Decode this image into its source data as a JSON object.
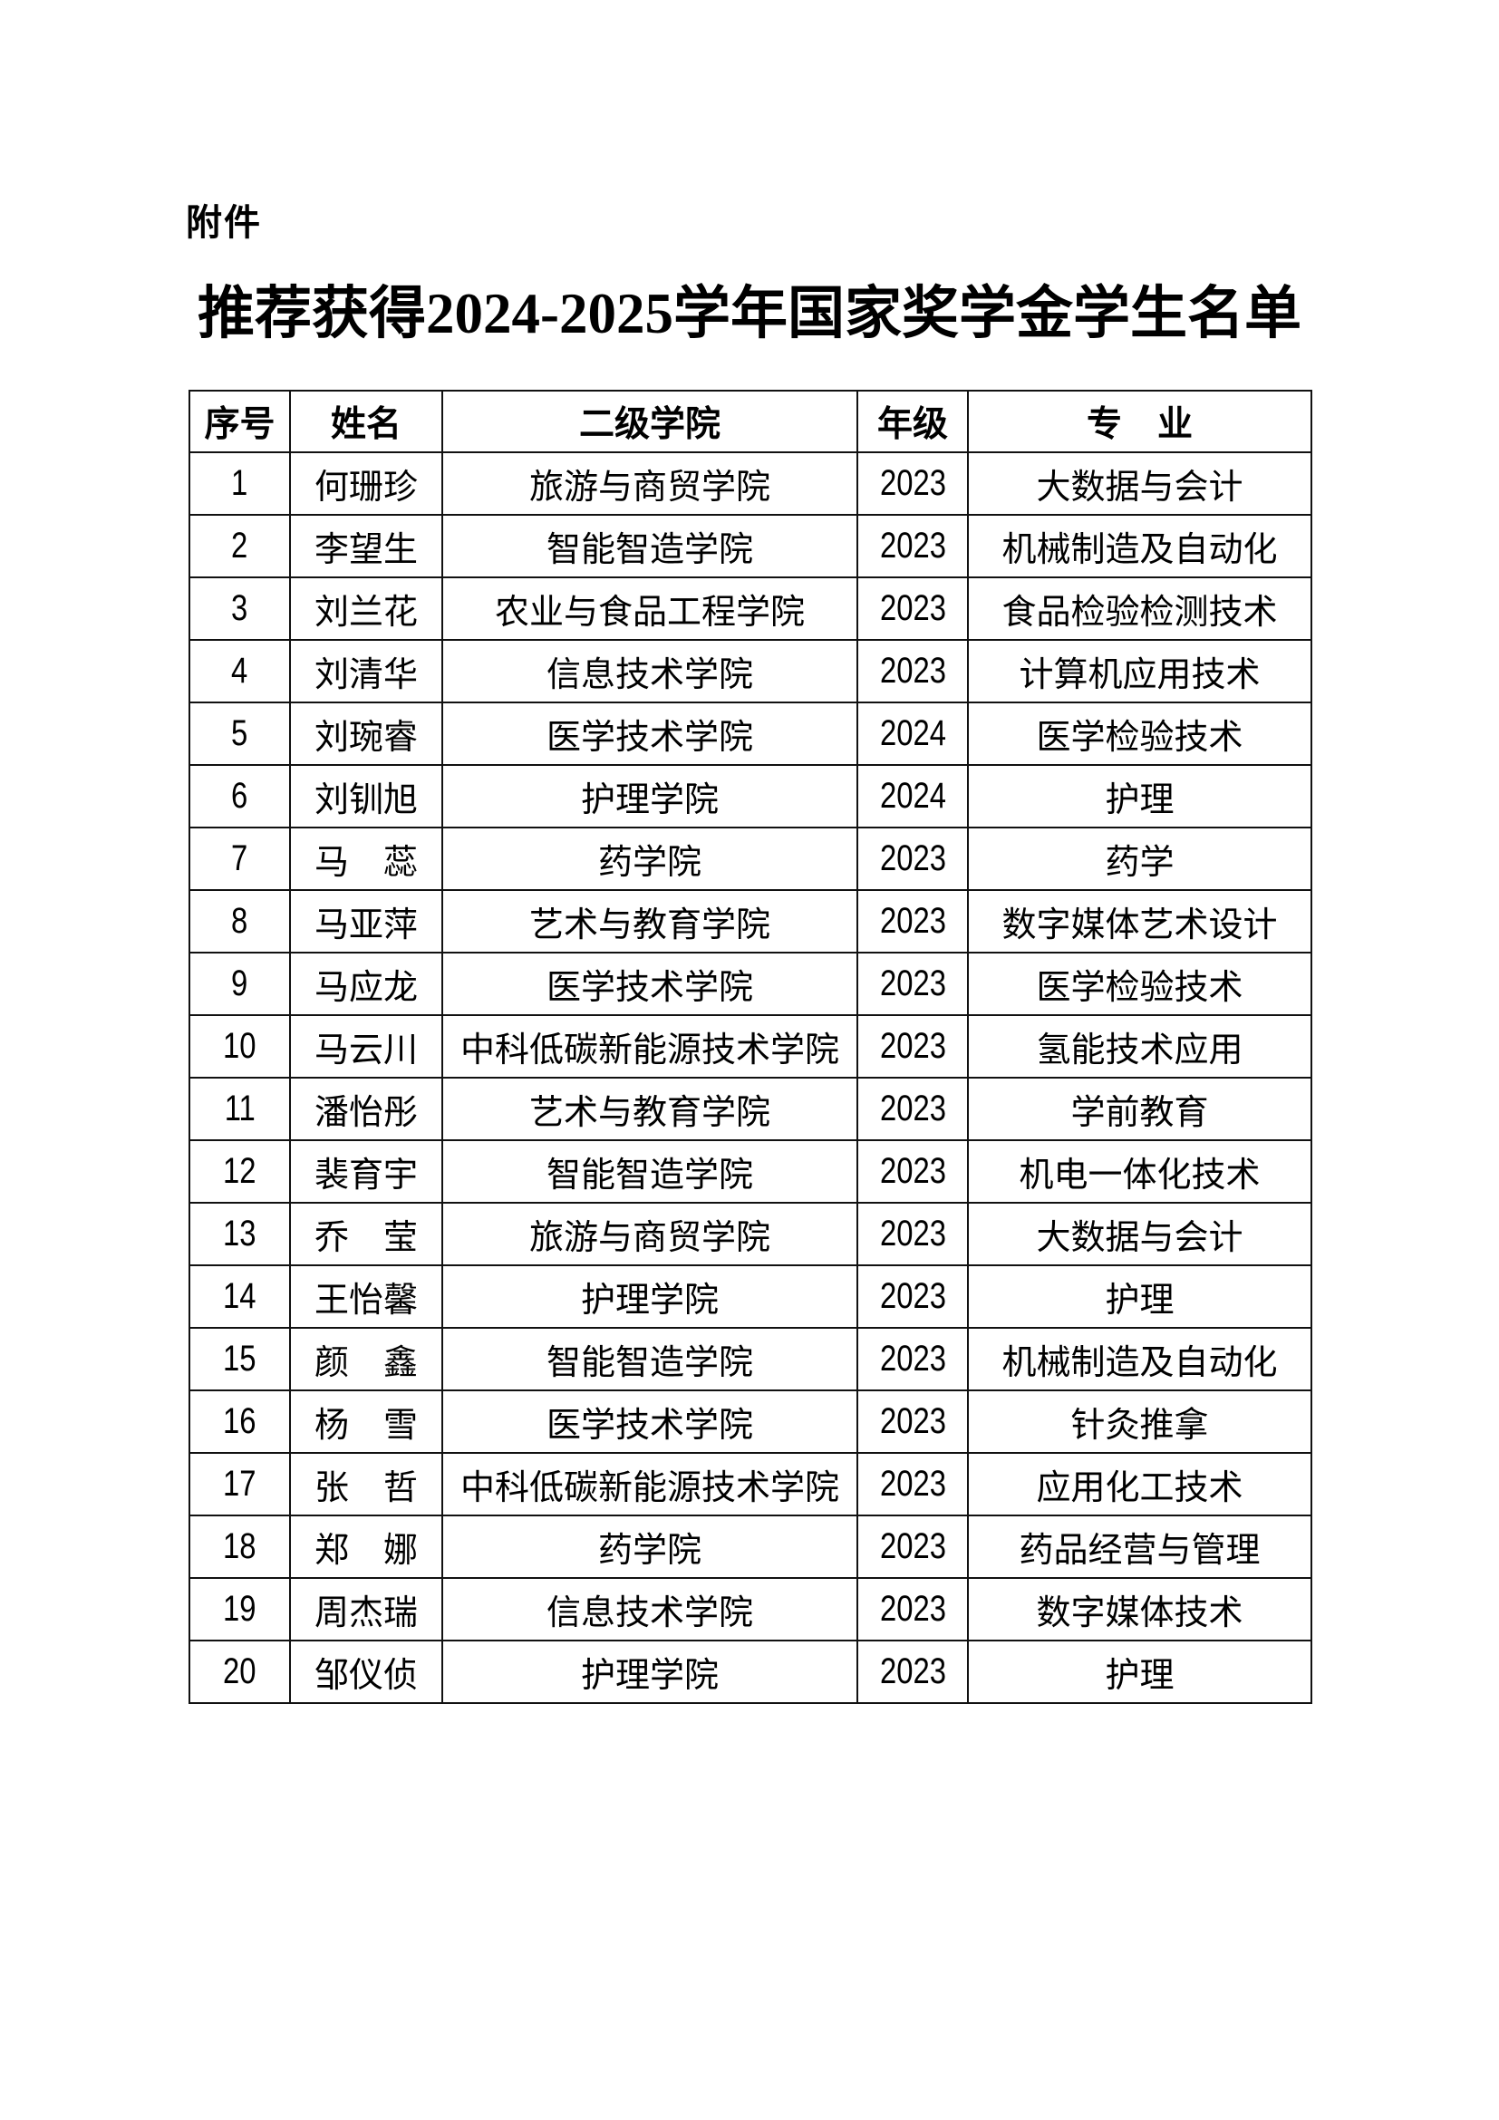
{
  "page": {
    "attachment_label": "附件",
    "title": "推荐获得2024-2025学年国家奖学金学生名单"
  },
  "table": {
    "headers": [
      "序号",
      "姓名",
      "二级学院",
      "年级",
      "专　业"
    ],
    "rows": [
      [
        "1",
        "何珊珍",
        "旅游与商贸学院",
        "2023",
        "大数据与会计"
      ],
      [
        "2",
        "李望生",
        "智能智造学院",
        "2023",
        "机械制造及自动化"
      ],
      [
        "3",
        "刘兰花",
        "农业与食品工程学院",
        "2023",
        "食品检验检测技术"
      ],
      [
        "4",
        "刘清华",
        "信息技术学院",
        "2023",
        "计算机应用技术"
      ],
      [
        "5",
        "刘琬睿",
        "医学技术学院",
        "2024",
        "医学检验技术"
      ],
      [
        "6",
        "刘钏旭",
        "护理学院",
        "2024",
        "护理"
      ],
      [
        "7",
        "马　蕊",
        "药学院",
        "2023",
        "药学"
      ],
      [
        "8",
        "马亚萍",
        "艺术与教育学院",
        "2023",
        "数字媒体艺术设计"
      ],
      [
        "9",
        "马应龙",
        "医学技术学院",
        "2023",
        "医学检验技术"
      ],
      [
        "10",
        "马云川",
        "中科低碳新能源技术学院",
        "2023",
        "氢能技术应用"
      ],
      [
        "11",
        "潘怡彤",
        "艺术与教育学院",
        "2023",
        "学前教育"
      ],
      [
        "12",
        "裴育宇",
        "智能智造学院",
        "2023",
        "机电一体化技术"
      ],
      [
        "13",
        "乔　莹",
        "旅游与商贸学院",
        "2023",
        "大数据与会计"
      ],
      [
        "14",
        "王怡馨",
        "护理学院",
        "2023",
        "护理"
      ],
      [
        "15",
        "颜　鑫",
        "智能智造学院",
        "2023",
        "机械制造及自动化"
      ],
      [
        "16",
        "杨　雪",
        "医学技术学院",
        "2023",
        "针灸推拿"
      ],
      [
        "17",
        "张　哲",
        "中科低碳新能源技术学院",
        "2023",
        "应用化工技术"
      ],
      [
        "18",
        "郑　娜",
        "药学院",
        "2023",
        "药品经营与管理"
      ],
      [
        "19",
        "周杰瑞",
        "信息技术学院",
        "2023",
        "数字媒体技术"
      ],
      [
        "20",
        "邹仪侦",
        "护理学院",
        "2023",
        "护理"
      ]
    ]
  }
}
